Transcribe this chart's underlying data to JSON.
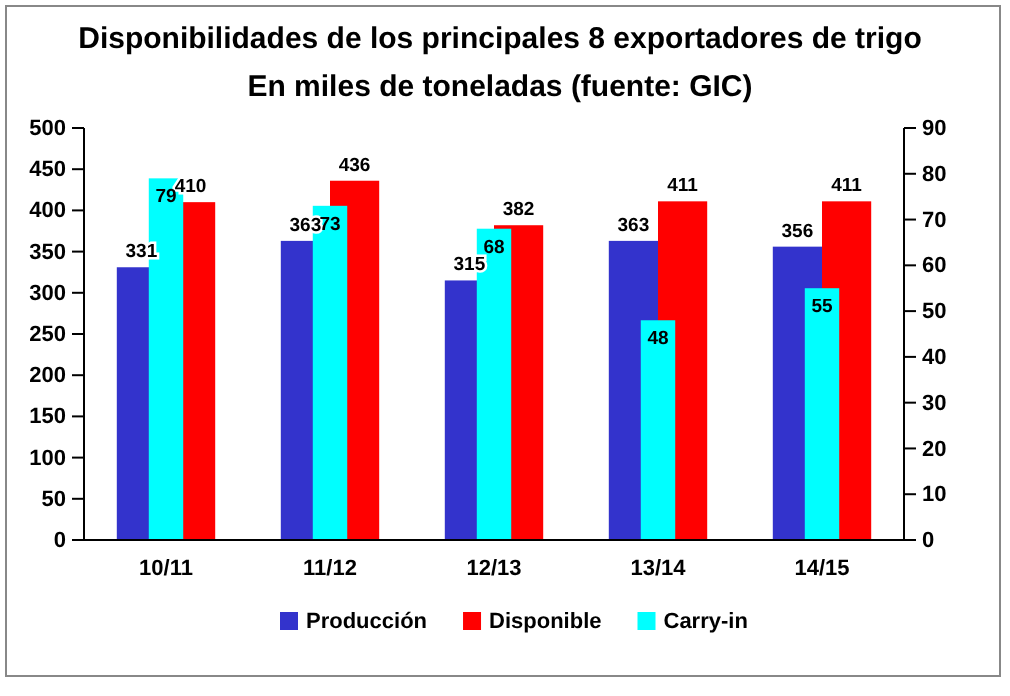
{
  "chart_data": {
    "type": "bar",
    "title": "Disponibilidades de los principales 8 exportadores de trigo",
    "subtitle": "En miles de toneladas (fuente: GIC)",
    "categories": [
      "10/11",
      "11/12",
      "12/13",
      "13/14",
      "14/15"
    ],
    "series": [
      {
        "name": "Producción",
        "color": "#3333cc",
        "values": [
          331,
          363,
          315,
          363,
          356
        ]
      },
      {
        "name": "Disponible",
        "color": "#ff0000",
        "values": [
          410,
          436,
          382,
          411,
          411
        ]
      },
      {
        "name": "Carry-in",
        "color": "#00ffff",
        "values": [
          79,
          73,
          68,
          48,
          55
        ],
        "axis": "y2"
      }
    ],
    "ylim": [
      0,
      500
    ],
    "yticks": [
      0,
      50,
      100,
      150,
      200,
      250,
      300,
      350,
      400,
      450,
      500
    ],
    "y2lim": [
      0,
      90
    ],
    "y2ticks": [
      0,
      10,
      20,
      30,
      40,
      50,
      60,
      70,
      80,
      90
    ],
    "data_labels": true,
    "legend": "bottom"
  }
}
